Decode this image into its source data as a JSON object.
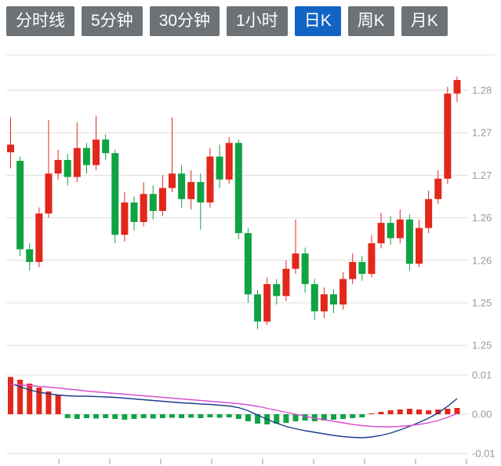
{
  "tabs": {
    "items": [
      {
        "label": "分时线",
        "selected": false
      },
      {
        "label": "5分钟",
        "selected": false
      },
      {
        "label": "30分钟",
        "selected": false
      },
      {
        "label": "1小时",
        "selected": false
      },
      {
        "label": "日K",
        "selected": true
      },
      {
        "label": "周K",
        "selected": false
      },
      {
        "label": "月K",
        "selected": false
      }
    ],
    "selected_index": 4
  },
  "colors": {
    "tab_bg": "#6d7276",
    "tab_selected_bg": "#1263c4",
    "tab_text": "#ffffff",
    "up": "#e2271b",
    "down": "#0fa344",
    "dif_line": "#1b3c8c",
    "dea_line": "#d94fd0",
    "grid": "#dedede",
    "axis_text": "#999999",
    "tick": "#999999"
  },
  "chart_data": [
    {
      "type": "candlestick",
      "title": "",
      "xlabel": "",
      "ylabel": "",
      "grid": true,
      "legend": false,
      "x_tick_count": 9,
      "y_axis_labels": [
        "1.28",
        "1.27",
        "1.27",
        "1.26",
        "1.26",
        "1.25",
        "1.25"
      ],
      "y_gridline_prices": [
        1.28,
        1.275,
        1.27,
        1.265,
        1.26,
        1.255,
        1.25
      ],
      "ylim": [
        1.2475,
        1.2825
      ],
      "up_means": "close >= open (red)",
      "down_means": "close < open (green)",
      "candles_ohlc": [
        [
          1.2727,
          1.2768,
          1.2708,
          1.2736
        ],
        [
          1.2717,
          1.2722,
          1.2605,
          1.2613
        ],
        [
          1.2613,
          1.262,
          1.2588,
          1.2598
        ],
        [
          1.2598,
          1.2662,
          1.2592,
          1.2655
        ],
        [
          1.2655,
          1.2765,
          1.265,
          1.2702
        ],
        [
          1.2702,
          1.273,
          1.2695,
          1.2718
        ],
        [
          1.2718,
          1.2725,
          1.2688,
          1.2698
        ],
        [
          1.2698,
          1.2762,
          1.2692,
          1.2732
        ],
        [
          1.2732,
          1.2738,
          1.2702,
          1.2712
        ],
        [
          1.2712,
          1.277,
          1.2706,
          1.2742
        ],
        [
          1.2742,
          1.2748,
          1.2718,
          1.2726
        ],
        [
          1.2726,
          1.273,
          1.262,
          1.263
        ],
        [
          1.263,
          1.268,
          1.2622,
          1.2668
        ],
        [
          1.2668,
          1.2675,
          1.2635,
          1.2645
        ],
        [
          1.2645,
          1.2692,
          1.264,
          1.2678
        ],
        [
          1.2678,
          1.2688,
          1.2648,
          1.2658
        ],
        [
          1.2658,
          1.27,
          1.2652,
          1.2685
        ],
        [
          1.2685,
          1.2768,
          1.268,
          1.2702
        ],
        [
          1.2702,
          1.2712,
          1.2662,
          1.2672
        ],
        [
          1.2672,
          1.2706,
          1.266,
          1.2692
        ],
        [
          1.2692,
          1.2702,
          1.2636,
          1.2668
        ],
        [
          1.2668,
          1.2732,
          1.2662,
          1.2722
        ],
        [
          1.2722,
          1.2736,
          1.2685,
          1.2695
        ],
        [
          1.2695,
          1.2745,
          1.269,
          1.2738
        ],
        [
          1.2738,
          1.2742,
          1.2625,
          1.2632
        ],
        [
          1.2632,
          1.2638,
          1.255,
          1.256
        ],
        [
          1.256,
          1.2565,
          1.2519,
          1.2528
        ],
        [
          1.2528,
          1.258,
          1.2524,
          1.2572
        ],
        [
          1.2572,
          1.2578,
          1.2548,
          1.2558
        ],
        [
          1.2558,
          1.26,
          1.2552,
          1.259
        ],
        [
          1.259,
          1.2648,
          1.2584,
          1.2608
        ],
        [
          1.2608,
          1.2615,
          1.2562,
          1.2572
        ],
        [
          1.2572,
          1.2578,
          1.253,
          1.254
        ],
        [
          1.254,
          1.2568,
          1.2532,
          1.256
        ],
        [
          1.256,
          1.2566,
          1.2538,
          1.2548
        ],
        [
          1.2548,
          1.2586,
          1.2542,
          1.2578
        ],
        [
          1.2578,
          1.2608,
          1.2572,
          1.2598
        ],
        [
          1.2598,
          1.2605,
          1.2576,
          1.2584
        ],
        [
          1.2584,
          1.263,
          1.258,
          1.262
        ],
        [
          1.262,
          1.2656,
          1.2614,
          1.2644
        ],
        [
          1.2644,
          1.2652,
          1.2618,
          1.2626
        ],
        [
          1.2626,
          1.266,
          1.262,
          1.2648
        ],
        [
          1.2648,
          1.2654,
          1.2588,
          1.2596
        ],
        [
          1.2596,
          1.2648,
          1.2592,
          1.2638
        ],
        [
          1.2638,
          1.2682,
          1.2632,
          1.2672
        ],
        [
          1.2672,
          1.2706,
          1.2666,
          1.2696
        ],
        [
          1.2696,
          1.2804,
          1.269,
          1.2796
        ],
        [
          1.2796,
          1.2816,
          1.2786,
          1.2812
        ]
      ]
    },
    {
      "type": "macd (bar + line)",
      "title": "",
      "grid": true,
      "legend": false,
      "y_axis_labels": [
        "0.01",
        "0.00",
        "-0.01"
      ],
      "y_gridline_values": [
        0.01,
        0.0,
        -0.01
      ],
      "ylim": [
        -0.011,
        0.011
      ],
      "series": [
        {
          "name": "MACD histogram",
          "type": "bar",
          "values": [
            0.0095,
            0.0088,
            0.0078,
            0.0068,
            0.0058,
            0.0048,
            -0.001,
            -0.0012,
            -0.001,
            -0.0011,
            -0.001,
            -0.0012,
            -0.0014,
            -0.0012,
            -0.001,
            -0.0011,
            -0.001,
            -0.0009,
            -0.001,
            -0.0009,
            -0.001,
            -0.0008,
            -0.0009,
            -0.0008,
            -0.0012,
            -0.0018,
            -0.0024,
            -0.0026,
            -0.0024,
            -0.0022,
            -0.0018,
            -0.0016,
            -0.0018,
            -0.0016,
            -0.0014,
            -0.0012,
            -0.001,
            -0.0008,
            0.0002,
            0.0006,
            0.001,
            0.0012,
            0.0014,
            0.0012,
            0.001,
            0.0012,
            0.0014,
            0.0016
          ]
        },
        {
          "name": "DIF",
          "type": "line",
          "color_key": "dif_line",
          "values": [
            0.0078,
            0.007,
            0.0062,
            0.0056,
            0.0052,
            0.0049,
            0.0047,
            0.0046,
            0.0046,
            0.0045,
            0.0044,
            0.0043,
            0.0041,
            0.0039,
            0.0037,
            0.0035,
            0.0033,
            0.0031,
            0.0029,
            0.0028,
            0.0026,
            0.0025,
            0.0023,
            0.0021,
            0.0017,
            0.0009,
            -0.0002,
            -0.0013,
            -0.0023,
            -0.0031,
            -0.0037,
            -0.0042,
            -0.0046,
            -0.005,
            -0.0054,
            -0.0057,
            -0.0059,
            -0.006,
            -0.0058,
            -0.0054,
            -0.0048,
            -0.004,
            -0.0031,
            -0.0021,
            -0.001,
            0.0003,
            0.002,
            0.004
          ]
        },
        {
          "name": "DEA",
          "type": "line",
          "color_key": "dea_line",
          "values": [
            0.0076,
            0.0075,
            0.0073,
            0.0071,
            0.0069,
            0.0067,
            0.0064,
            0.0062,
            0.0059,
            0.0057,
            0.0055,
            0.0053,
            0.0051,
            0.0049,
            0.0047,
            0.0045,
            0.0043,
            0.0041,
            0.0039,
            0.0037,
            0.0035,
            0.0033,
            0.0031,
            0.0029,
            0.0027,
            0.0024,
            0.002,
            0.0015,
            0.001,
            0.0005,
            0.0,
            -0.0005,
            -0.001,
            -0.0014,
            -0.0018,
            -0.0022,
            -0.0026,
            -0.0029,
            -0.0031,
            -0.0032,
            -0.0032,
            -0.0031,
            -0.0029,
            -0.0026,
            -0.0022,
            -0.0016,
            -0.0008,
            0.0002
          ]
        }
      ]
    }
  ]
}
